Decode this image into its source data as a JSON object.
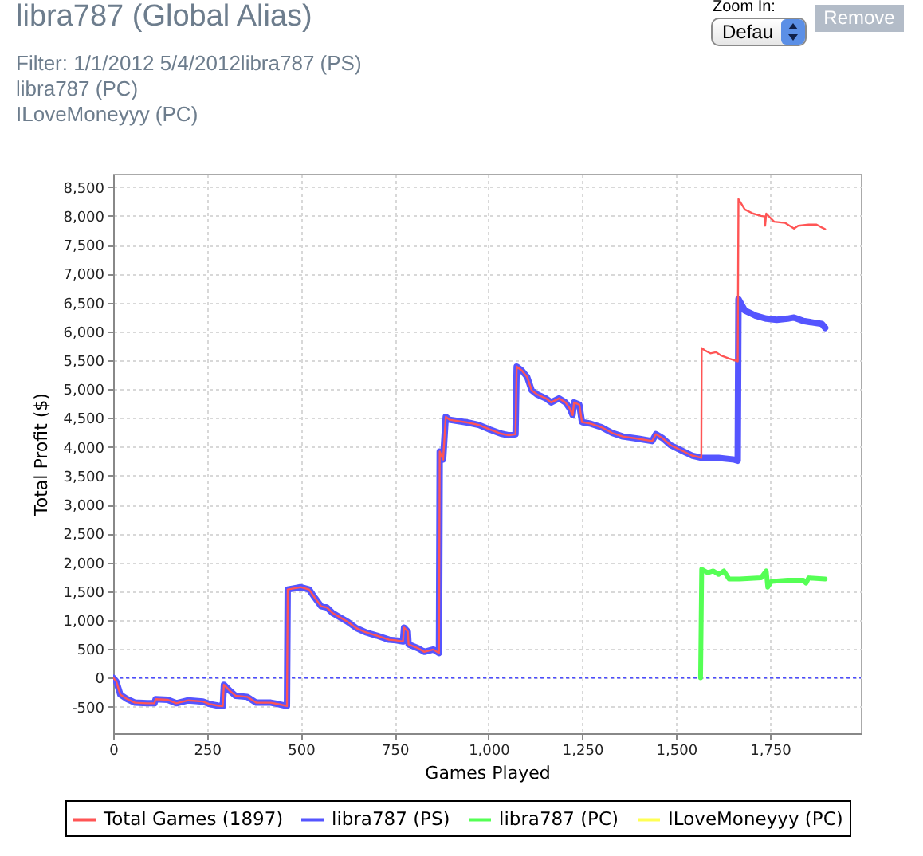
{
  "chart_data": {
    "type": "line",
    "title": "libra787 (Global Alias)",
    "subtitle": "Filter: 1/1/2012 5/4/2012libra787 (PS)\nlibra787 (PC)\nILoveMoneyyy (PC)",
    "xlabel": "Games Played",
    "ylabel": "Total Profit ($)",
    "annotations": [
      "Zoom In:",
      "Defau",
      "Remove"
    ],
    "xlim": [
      0,
      1992
    ],
    "xticks": [
      0,
      250,
      500,
      750,
      {
        "value": 1000,
        "label": "1,000"
      },
      {
        "value": 1250,
        "label": "1,250"
      },
      {
        "value": 1500,
        "label": "1,500"
      },
      {
        "value": 1750,
        "label": "1,750"
      }
    ],
    "ylim": [
      -960,
      8730
    ],
    "yticks": [
      -500,
      0,
      500,
      {
        "value": 1000,
        "label": "1,000"
      },
      {
        "value": 1500,
        "label": "1,500"
      },
      {
        "value": 2000,
        "label": "2,000"
      },
      {
        "value": 2500,
        "label": "2,500"
      },
      {
        "value": 3000,
        "label": "3,000"
      },
      {
        "value": 3500,
        "label": "3,500"
      },
      {
        "value": 4000,
        "label": "4,000"
      },
      {
        "value": 4500,
        "label": "4,500"
      },
      {
        "value": 5000,
        "label": "5,000"
      },
      {
        "value": 5500,
        "label": "5,500"
      },
      {
        "value": 6000,
        "label": "6,000"
      },
      {
        "value": 6500,
        "label": "6,500"
      },
      {
        "value": 7000,
        "label": "7,000"
      },
      {
        "value": 7500,
        "label": "7,500"
      },
      {
        "value": 8000,
        "label": "8,000"
      },
      {
        "value": 8500,
        "label": "8,500"
      }
    ],
    "grid": true,
    "legend": "bottom",
    "marker": "none",
    "ref_lines": [
      {
        "axis": "y",
        "value": 0,
        "color": "#4c4cff",
        "line_style": "dotted"
      }
    ],
    "series": [
      {
        "name": "Total Games (1897)",
        "color": "#ff5555",
        "x": [
          0,
          8,
          19,
          35,
          58,
          90,
          110,
          113,
          145,
          168,
          200,
          239,
          255,
          278,
          292,
          295,
          310,
          326,
          357,
          381,
          420,
          444,
          463,
          465,
          483,
          499,
          522,
          538,
          554,
          569,
          585,
          601,
          625,
          648,
          672,
          703,
          735,
          753,
          772,
          775,
          785,
          787,
          813,
          829,
          853,
          868,
          870,
          879,
          886,
          896,
          946,
          974,
          1004,
          1033,
          1054,
          1072,
          1075,
          1089,
          1103,
          1115,
          1129,
          1153,
          1167,
          1188,
          1205,
          1217,
          1224,
          1228,
          1242,
          1249,
          1273,
          1301,
          1330,
          1358,
          1400,
          1436,
          1446,
          1464,
          1485,
          1514,
          1542,
          1567,
          1568,
          1577,
          1591,
          1606,
          1620,
          1641,
          1664,
          1666,
          1683,
          1705,
          1726,
          1736,
          1737,
          1740,
          1761,
          1790,
          1814,
          1825,
          1853,
          1874,
          1888,
          1897
        ],
        "values": [
          0,
          -60,
          -290,
          -360,
          -430,
          -440,
          -440,
          -370,
          -380,
          -440,
          -390,
          -410,
          -450,
          -480,
          -490,
          -120,
          -220,
          -310,
          -330,
          -430,
          -430,
          -460,
          -490,
          1530,
          1550,
          1570,
          1530,
          1380,
          1240,
          1220,
          1120,
          1060,
          970,
          860,
          790,
          730,
          660,
          650,
          630,
          870,
          800,
          580,
          510,
          450,
          490,
          430,
          3920,
          3780,
          4520,
          4470,
          4420,
          4380,
          4300,
          4230,
          4200,
          4220,
          5390,
          5320,
          5210,
          4980,
          4910,
          4840,
          4770,
          4840,
          4770,
          4660,
          4550,
          4770,
          4730,
          4430,
          4400,
          4340,
          4240,
          4180,
          4140,
          4100,
          4220,
          4150,
          4030,
          3940,
          3850,
          3810,
          5710,
          5670,
          5620,
          5640,
          5580,
          5530,
          5480,
          8290,
          8110,
          8040,
          8000,
          7990,
          7830,
          8040,
          7900,
          7880,
          7780,
          7830,
          7850,
          7850,
          7800,
          7770
        ]
      },
      {
        "name": "libra787 (PS)",
        "color": "#5555ff",
        "x": [
          0,
          8,
          19,
          35,
          58,
          90,
          110,
          113,
          145,
          168,
          200,
          239,
          255,
          278,
          292,
          295,
          310,
          326,
          357,
          381,
          420,
          444,
          463,
          465,
          483,
          499,
          522,
          538,
          554,
          569,
          585,
          601,
          625,
          648,
          672,
          703,
          735,
          753,
          772,
          775,
          785,
          787,
          813,
          829,
          853,
          868,
          870,
          879,
          886,
          896,
          946,
          974,
          1004,
          1033,
          1054,
          1072,
          1075,
          1089,
          1103,
          1115,
          1129,
          1153,
          1167,
          1188,
          1205,
          1217,
          1224,
          1228,
          1242,
          1249,
          1273,
          1301,
          1330,
          1358,
          1400,
          1436,
          1446,
          1464,
          1485,
          1514,
          1542,
          1567,
          1613,
          1655,
          1664,
          1666,
          1683,
          1712,
          1740,
          1768,
          1797,
          1814,
          1839,
          1867,
          1888,
          1897
        ],
        "values": [
          0,
          -60,
          -290,
          -360,
          -430,
          -440,
          -440,
          -370,
          -380,
          -440,
          -390,
          -410,
          -450,
          -480,
          -490,
          -120,
          -220,
          -310,
          -330,
          -430,
          -430,
          -460,
          -490,
          1530,
          1550,
          1570,
          1530,
          1380,
          1240,
          1220,
          1120,
          1060,
          970,
          860,
          790,
          730,
          660,
          650,
          630,
          870,
          800,
          580,
          510,
          450,
          490,
          430,
          3920,
          3780,
          4520,
          4470,
          4420,
          4380,
          4300,
          4230,
          4200,
          4220,
          5390,
          5320,
          5210,
          4980,
          4910,
          4840,
          4770,
          4840,
          4770,
          4660,
          4550,
          4770,
          4730,
          4430,
          4400,
          4340,
          4240,
          4180,
          4140,
          4100,
          4220,
          4150,
          4030,
          3940,
          3850,
          3810,
          3810,
          3780,
          3760,
          6560,
          6360,
          6270,
          6220,
          6200,
          6220,
          6240,
          6180,
          6150,
          6130,
          6060
        ]
      },
      {
        "name": "libra787 (PC)",
        "color": "#55ff55",
        "x": [
          1565,
          1568,
          1584,
          1599,
          1613,
          1627,
          1641,
          1669,
          1726,
          1740,
          1744,
          1754,
          1797,
          1839,
          1846,
          1853,
          1897
        ],
        "values": [
          0,
          1880,
          1820,
          1850,
          1790,
          1850,
          1710,
          1710,
          1730,
          1850,
          1570,
          1670,
          1690,
          1690,
          1640,
          1730,
          1710
        ]
      },
      {
        "name": "ILoveMoneyyy (PC)",
        "color": "#ffff55"
      }
    ]
  }
}
